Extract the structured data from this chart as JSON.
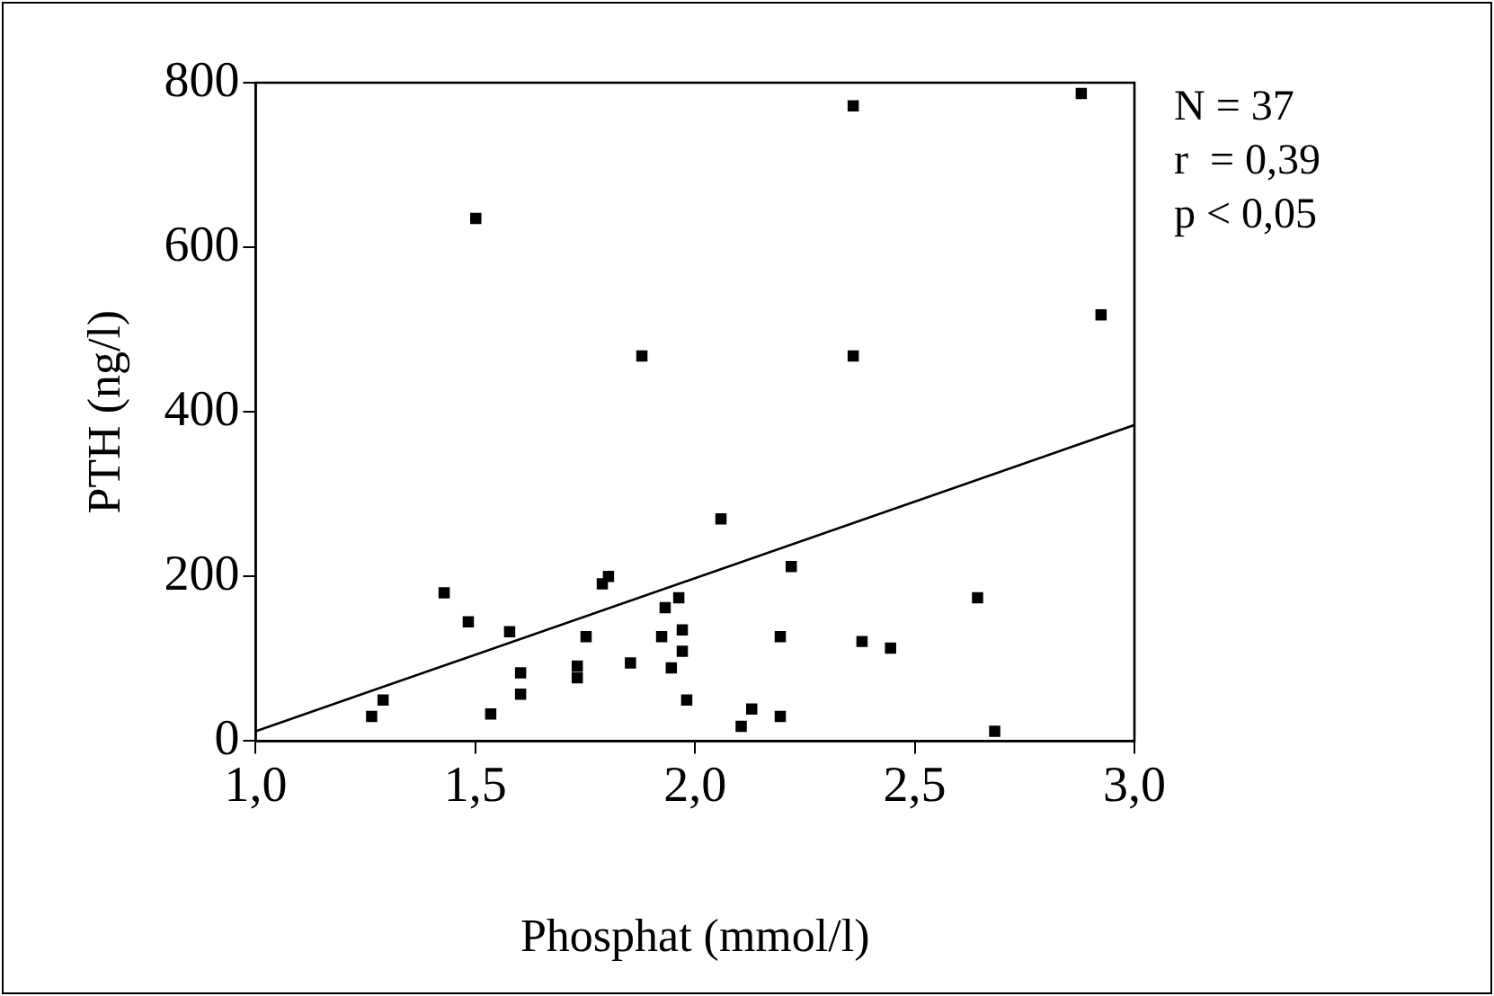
{
  "chart_data": {
    "type": "scatter",
    "xlabel": "Phosphat (mmol/l)",
    "ylabel": "PTH (ng/l)",
    "annotations": [
      "N = 37",
      "r  = 0,39",
      "p < 0,05"
    ],
    "xlim": [
      1,
      3
    ],
    "xticks": [
      {
        "value": 1,
        "label": "1,0"
      },
      {
        "value": 1.5,
        "label": "1,5"
      },
      {
        "value": 2,
        "label": "2,0"
      },
      {
        "value": 2.5,
        "label": "2,5"
      },
      {
        "value": 3,
        "label": "3,0"
      }
    ],
    "ylim": [
      0,
      800
    ],
    "yticks": [
      0,
      200,
      400,
      600,
      800
    ],
    "grid": false,
    "legend": false,
    "marker": "square",
    "series": [
      {
        "color": "#000000",
        "x": [
          1.264,
          1.29,
          1.429,
          1.484,
          1.535,
          1.578,
          1.603,
          1.603,
          1.732,
          1.732,
          1.752,
          1.789,
          1.803,
          1.853,
          1.924,
          1.932,
          1.946,
          1.963,
          1.971,
          1.971,
          1.981,
          2.059,
          2.105,
          2.129,
          2.194,
          2.194,
          2.219,
          2.38,
          2.445,
          2.643,
          2.682,
          1.501,
          1.879,
          2.36,
          2.36,
          2.879,
          2.924
        ],
        "values": [
          30,
          50,
          180,
          145,
          33,
          133,
          83,
          57,
          91,
          77,
          127,
          191,
          200,
          95,
          127,
          162,
          89,
          174,
          135,
          109,
          50,
          270,
          18,
          39,
          127,
          30,
          212,
          121,
          113,
          174,
          12,
          635,
          468,
          468,
          772,
          787,
          518
        ]
      },
      {
        "type": "line",
        "marker": "none",
        "color": "#000000",
        "x": [
          1,
          3
        ],
        "values": [
          12,
          384
        ]
      }
    ]
  }
}
